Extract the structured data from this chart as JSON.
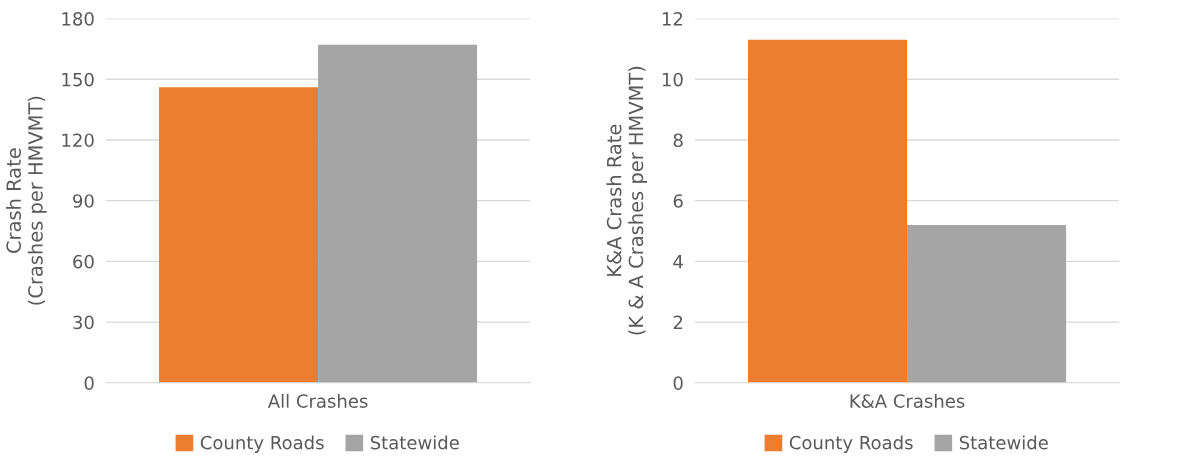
{
  "chart_data": [
    {
      "type": "bar",
      "categories": [
        "All Crashes"
      ],
      "ylabel": "Crash Rate\n(Crashes per HMVMT)",
      "ylim": [
        0,
        180
      ],
      "yticks": [
        0,
        30,
        60,
        90,
        120,
        150,
        180
      ],
      "grid": "y",
      "legend": "bottom",
      "series": [
        {
          "name": "County Roads",
          "color": "#ed7d31",
          "values": [
            146
          ]
        },
        {
          "name": "Statewide",
          "color": "#a5a5a5",
          "values": [
            167
          ]
        }
      ]
    },
    {
      "type": "bar",
      "categories": [
        "K&A Crashes"
      ],
      "ylabel": "K&A Crash Rate\n(K & A Crashes per HMVMT)",
      "ylim": [
        0,
        12
      ],
      "yticks": [
        0,
        2,
        4,
        6,
        8,
        10,
        12
      ],
      "grid": "y",
      "legend": "bottom",
      "series": [
        {
          "name": "County Roads",
          "color": "#ed7d31",
          "values": [
            11.3
          ]
        },
        {
          "name": "Statewide",
          "color": "#a5a5a5",
          "values": [
            5.2
          ]
        }
      ]
    }
  ]
}
